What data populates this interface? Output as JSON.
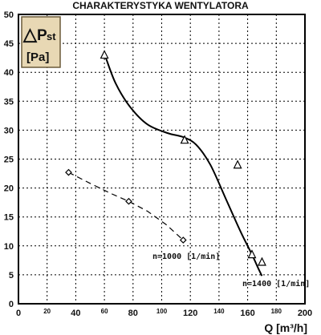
{
  "chart_data": {
    "type": "line",
    "title": "CHARAKTERYSTYKA WENTYLATORA",
    "ylabel_symbol": "△",
    "ylabel_main": "P",
    "ylabel_sub": "st",
    "ylabel_unit": "[Pa]",
    "xlabel": "Q [m³/h]",
    "xlim": [
      0,
      200
    ],
    "ylim": [
      0,
      50
    ],
    "grid": true,
    "y_ticks": [
      "0",
      "5",
      "10",
      "15",
      "20",
      "25",
      "30",
      "35",
      "40",
      "45",
      "50"
    ],
    "x_ticks_major": [
      {
        "value": 0,
        "label": "0"
      },
      {
        "value": 40,
        "label": "40"
      },
      {
        "value": 80,
        "label": "80"
      },
      {
        "value": 120,
        "label": "120"
      },
      {
        "value": 160,
        "label": "160"
      },
      {
        "value": 200,
        "label": "200"
      }
    ],
    "x_ticks_minor": [
      {
        "value": 20,
        "label": "20"
      },
      {
        "value": 60,
        "label": "60"
      },
      {
        "value": 100,
        "label": "100"
      },
      {
        "value": 140,
        "label": "140"
      },
      {
        "value": 180,
        "label": "180"
      }
    ],
    "series": [
      {
        "name": "n=1400 [1/min]",
        "style": "solid",
        "marker": "triangle",
        "color": "#000000",
        "points": [
          [
            60,
            43
          ],
          [
            116,
            28.3
          ],
          [
            153,
            24
          ],
          [
            163,
            8.5
          ],
          [
            170,
            7.2
          ]
        ],
        "curve": [
          [
            61,
            42.5
          ],
          [
            68,
            38
          ],
          [
            78,
            34
          ],
          [
            90,
            31
          ],
          [
            104,
            29.5
          ],
          [
            115,
            28.8
          ],
          [
            124,
            27.5
          ],
          [
            134,
            24
          ],
          [
            145,
            18
          ],
          [
            155,
            12.5
          ],
          [
            163,
            8.5
          ],
          [
            168,
            5.8
          ],
          [
            170,
            4.8
          ]
        ]
      },
      {
        "name": "n=1000 [1/min]",
        "style": "dashed",
        "marker": "diamond",
        "color": "#000000",
        "points": [
          [
            35,
            22.7
          ],
          [
            77,
            17.7
          ],
          [
            115,
            11
          ]
        ],
        "curve": [
          [
            35,
            22.7
          ],
          [
            50,
            20.8
          ],
          [
            65,
            19
          ],
          [
            77,
            17.7
          ],
          [
            90,
            16
          ],
          [
            103,
            13.7
          ],
          [
            115,
            11
          ]
        ]
      }
    ]
  }
}
